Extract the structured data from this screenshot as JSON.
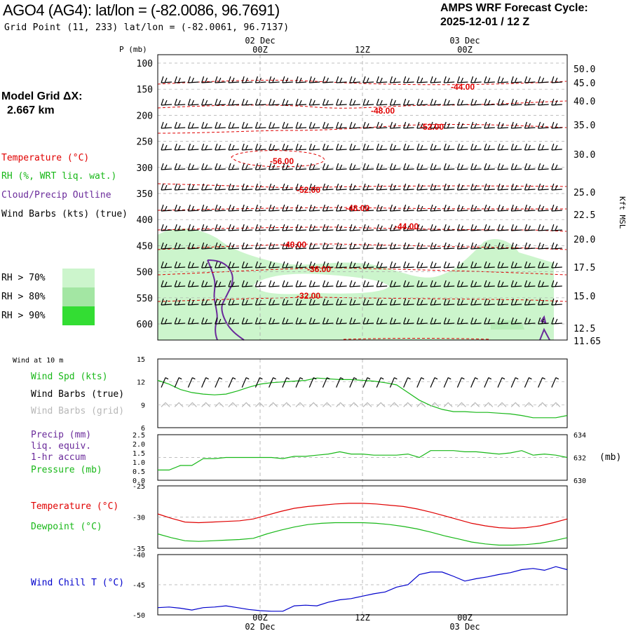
{
  "header": {
    "title": "AGO4 (AG4):  lat/lon = (-82.0086, 96.7691)",
    "subtitle": "Grid Point (11, 233) lat/lon = (-82.0061, 96.7137)",
    "cycle_label": "AMPS WRF Forecast Cycle:",
    "cycle_value": "2025-12-01 / 12  Z",
    "grid_label": "Model Grid ΔX:",
    "grid_value": "2.667 km"
  },
  "legend": {
    "temperature": "Temperature (°C)",
    "rh": "RH (%, WRT liq. wat.)",
    "cloud": "Cloud/Precip Outline",
    "wind_barbs": "Wind Barbs (kts) (true)",
    "rh70": "RH > 70%",
    "rh80": "RH > 80%",
    "rh90": "RH > 90%",
    "wind10": "Wind at 10 m",
    "wind_spd": "Wind Spd (kts)",
    "wind_true": "Wind Barbs (true)",
    "wind_grid": "Wind Barbs (grid)",
    "precip1": "Precip (mm)",
    "precip2": "liq. equiv.",
    "precip3": "1-hr accum",
    "pressure": "Pressure (mb)",
    "pressure_unit": "(mb)",
    "temp2": "Temperature (°C)",
    "dewpoint": "Dewpoint (°C)",
    "windchill": "Wind Chill T (°C)"
  },
  "colors": {
    "temperature": "#e00000",
    "rh": "#18b818",
    "cloud": "#6a2a9a",
    "windchill": "#0000cc",
    "grid_barbs": "#b8b8b8",
    "rh70": "#ccf5cc",
    "rh80": "#a3e6a3",
    "rh90": "#33dd33"
  },
  "time_axis": {
    "top_labels": [
      {
        "date": "02 Dec",
        "time": "00Z",
        "hour": 12
      },
      {
        "date": "",
        "time": "12Z",
        "hour": 24
      },
      {
        "date": "03 Dec",
        "time": "00Z",
        "hour": 36
      }
    ],
    "bottom_labels": [
      {
        "date": "02 Dec",
        "time": "00Z",
        "hour": 12
      },
      {
        "date": "",
        "time": "12Z",
        "hour": 24
      },
      {
        "date": "03 Dec",
        "time": "00Z",
        "hour": 36
      }
    ]
  },
  "chart_data": [
    {
      "id": "cross-section",
      "type": "contour",
      "ylabel": "P (mb)",
      "yright_label": "Kft MSL",
      "pressure_ticks": [
        "100",
        "150",
        "200",
        "250",
        "300",
        "350",
        "400",
        "450",
        "500",
        "550",
        "600"
      ],
      "height_ticks": [
        "50.0",
        "45.0",
        "40.0",
        "35.0",
        "30.0",
        "25.0",
        "22.5",
        "20.0",
        "17.5",
        "15.0",
        "12.5",
        "11.65"
      ],
      "temperature_labels": [
        "-44.00",
        "-48.00",
        "-52.00",
        "-56.00",
        "-52.00",
        "-48.00",
        "-44.00",
        "-40.00",
        "-36.00",
        "-32.00"
      ]
    },
    {
      "id": "wind-speed",
      "type": "line",
      "ylim": [
        6,
        15
      ],
      "yticks": [
        "15",
        "12",
        "9",
        "6"
      ],
      "series": [
        {
          "name": "Wind Spd (kts)",
          "values": [
            12.2,
            11.7,
            11.0,
            10.6,
            10.4,
            10.3,
            10.4,
            10.8,
            11.3,
            11.7,
            11.9,
            12.0,
            12.1,
            12.2,
            12.5,
            12.4,
            12.3,
            12.3,
            12.2,
            12.1,
            11.9,
            11.6,
            10.6,
            9.6,
            8.9,
            8.4,
            8.1,
            8.1,
            8.0,
            8.0,
            7.9,
            7.8,
            7.6,
            7.3,
            7.3,
            7.3,
            7.6
          ]
        }
      ]
    },
    {
      "id": "precip-pressure",
      "type": "line",
      "ylim": [
        0,
        2.5
      ],
      "yticks": [
        "2.5",
        "2.0",
        "1.5",
        "1.0",
        "0.5",
        "0.0"
      ],
      "pressure_ticks": [
        "634",
        "632",
        "630"
      ],
      "pressure_range": [
        630,
        634
      ],
      "series": [
        {
          "name": "Pressure (mb)",
          "values": [
            630.9,
            630.9,
            631.3,
            631.3,
            631.9,
            631.9,
            632.0,
            632.0,
            632.0,
            632.0,
            632.0,
            631.9,
            632.1,
            632.1,
            632.2,
            632.3,
            632.5,
            632.3,
            632.3,
            632.2,
            632.2,
            632.2,
            632.3,
            632.0,
            632.6,
            632.6,
            632.6,
            632.5,
            632.5,
            632.4,
            632.3,
            632.4,
            632.6,
            632.2,
            632.3,
            632.2,
            632.0
          ]
        }
      ]
    },
    {
      "id": "temperature-dewpoint",
      "type": "line",
      "ylim": [
        -35,
        -25
      ],
      "yticks": [
        "-25",
        "-30",
        "-35"
      ],
      "series": [
        {
          "name": "Temperature (°C)",
          "values": [
            -29.5,
            -30.2,
            -30.8,
            -30.9,
            -30.8,
            -30.7,
            -30.6,
            -30.3,
            -29.7,
            -29.1,
            -28.6,
            -28.3,
            -28.1,
            -27.9,
            -27.8,
            -27.8,
            -27.9,
            -28.1,
            -28.3,
            -28.7,
            -29.2,
            -29.8,
            -30.4,
            -31.0,
            -31.4,
            -31.7,
            -31.8,
            -31.7,
            -31.4,
            -30.9,
            -30.3
          ]
        },
        {
          "name": "Dewpoint (°C)",
          "values": [
            -32.7,
            -33.3,
            -33.8,
            -33.9,
            -33.8,
            -33.7,
            -33.6,
            -33.4,
            -32.7,
            -32.1,
            -31.6,
            -31.2,
            -31.0,
            -30.9,
            -30.9,
            -30.9,
            -31.0,
            -31.2,
            -31.5,
            -31.9,
            -32.4,
            -33.0,
            -33.5,
            -34.0,
            -34.3,
            -34.5,
            -34.5,
            -34.4,
            -34.2,
            -33.8,
            -33.3
          ]
        }
      ]
    },
    {
      "id": "wind-chill",
      "type": "line",
      "ylim": [
        -50,
        -40
      ],
      "yticks": [
        "-40",
        "-45",
        "-50"
      ],
      "series": [
        {
          "name": "Wind Chill T (°C)",
          "values": [
            -48.8,
            -48.7,
            -48.9,
            -49.2,
            -48.8,
            -48.7,
            -48.5,
            -48.8,
            -49.1,
            -49.3,
            -49.4,
            -49.4,
            -48.5,
            -48.4,
            -48.5,
            -47.9,
            -47.5,
            -47.3,
            -46.9,
            -46.5,
            -46.2,
            -45.4,
            -45.0,
            -43.3,
            -42.9,
            -42.9,
            -43.6,
            -44.4,
            -44.0,
            -43.7,
            -43.3,
            -43.0,
            -42.5,
            -42.3,
            -42.6,
            -42.0,
            -42.5
          ]
        }
      ]
    }
  ]
}
